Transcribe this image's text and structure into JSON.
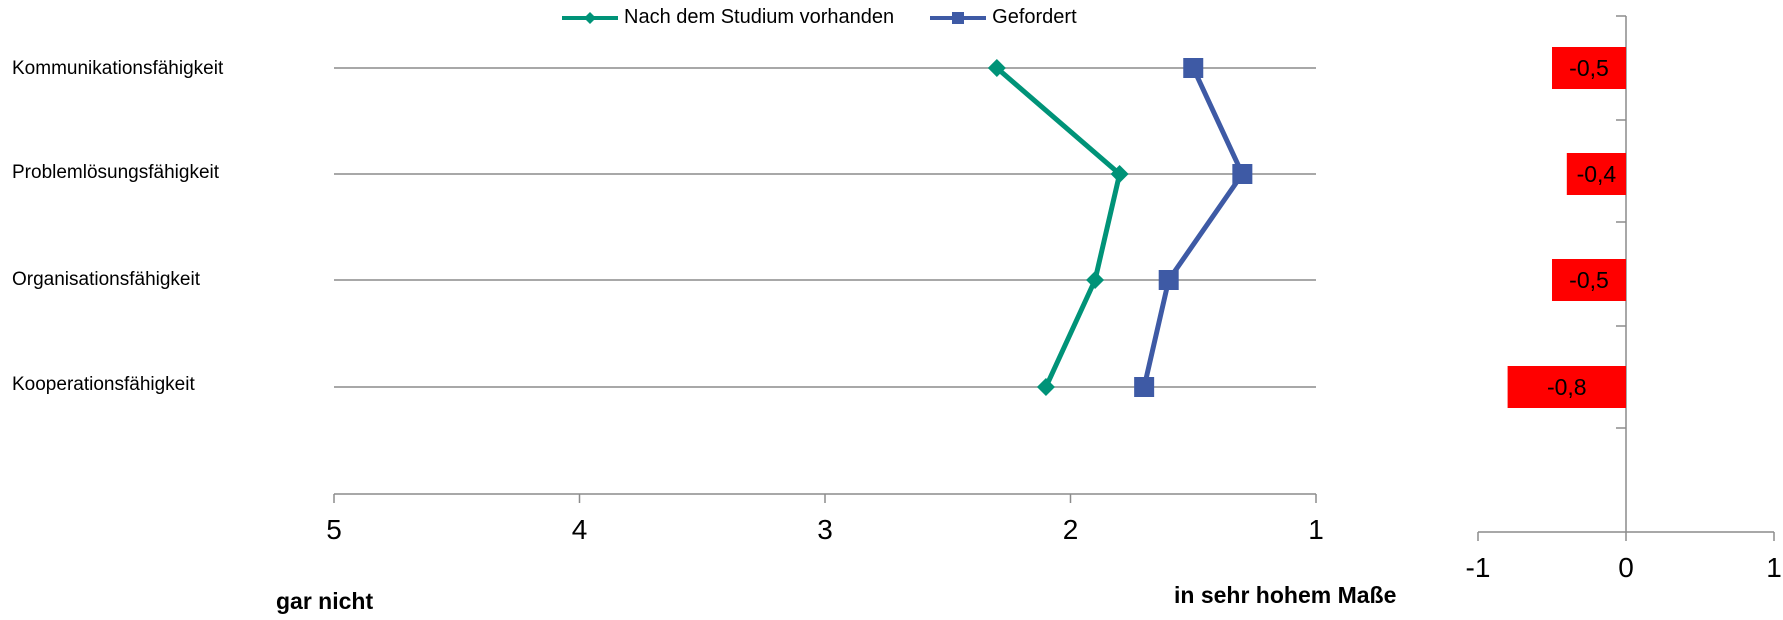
{
  "chart_data": [
    {
      "type": "line",
      "orientation": "horizontal-value-axis",
      "categories": [
        "Kommunikationsfähigkeit",
        "Problemlösungsfähigkeit",
        "Organisationsfähigkeit",
        "Kooperationsfähigkeit"
      ],
      "series": [
        {
          "name": "Nach dem Studium vorhanden",
          "values": [
            2.3,
            1.8,
            1.9,
            2.1
          ],
          "color": "#009378",
          "marker": "diamond"
        },
        {
          "name": "Gefordert",
          "values": [
            1.5,
            1.3,
            1.6,
            1.7
          ],
          "color": "#3E5AA5",
          "marker": "square"
        }
      ],
      "xlim": [
        5,
        1
      ],
      "x_ticks": [
        "5",
        "4",
        "3",
        "2",
        "1"
      ],
      "x_reversed": true,
      "grid": "horizontal",
      "legend": "top-center",
      "anchor_left": "gar nicht",
      "anchor_right": "in sehr hohem Maße"
    },
    {
      "type": "bar",
      "orientation": "horizontal",
      "categories": [
        "Kommunikationsfähigkeit",
        "Problemlösungsfähigkeit",
        "Organisationsfähigkeit",
        "Kooperationsfähigkeit"
      ],
      "values": [
        -0.5,
        -0.4,
        -0.5,
        -0.8
      ],
      "labels": [
        "-0,5",
        "-0,4",
        "-0,5",
        "-0,8"
      ],
      "color": "#FF0000",
      "xlim": [
        -1,
        1
      ],
      "x_ticks": [
        "-1",
        "0",
        "1"
      ],
      "grid": "off"
    }
  ]
}
